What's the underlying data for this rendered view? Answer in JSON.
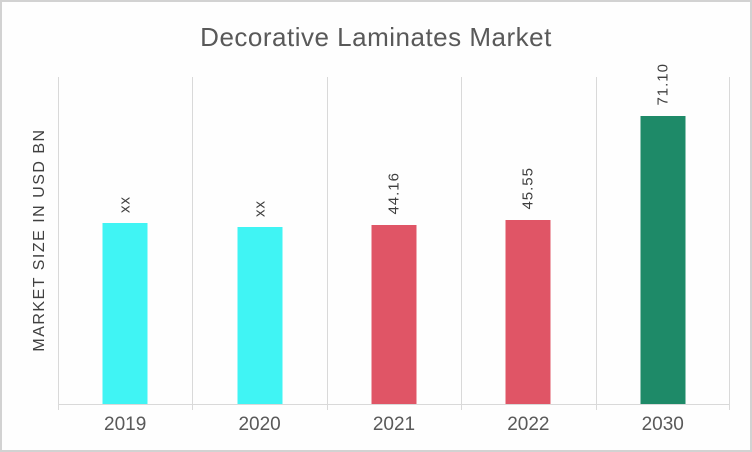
{
  "chart_data": {
    "type": "bar",
    "title": "Decorative Laminates Market",
    "xlabel": "",
    "ylabel": "MARKET SIZE IN USD BN",
    "categories": [
      "2019",
      "2020",
      "2021",
      "2022",
      "2030"
    ],
    "values": [
      null,
      null,
      44.16,
      45.55,
      71.1
    ],
    "labels": [
      "xx",
      "xx",
      "44.16",
      "45.55",
      "71.10"
    ],
    "display_values": [
      44.6,
      43.6,
      44.16,
      45.55,
      71.1
    ],
    "bar_colors": [
      "#40F4F4",
      "#40F4F4",
      "#E05566",
      "#E05566",
      "#1E8A68"
    ],
    "ylim": [
      0,
      81
    ],
    "grid": "vertical-only",
    "legend": "none",
    "unit": "USD BN"
  },
  "colors": {
    "title_text": "#595959",
    "axis_text": "#595959",
    "value_label_text": "#3F3F3F",
    "gridline": "#D9D9D9",
    "border": "#D2D2D2",
    "background": "#FEFEFE",
    "cyan_bar": "#40F4F4",
    "red_bar": "#E05566",
    "green_bar": "#1E8A68"
  }
}
